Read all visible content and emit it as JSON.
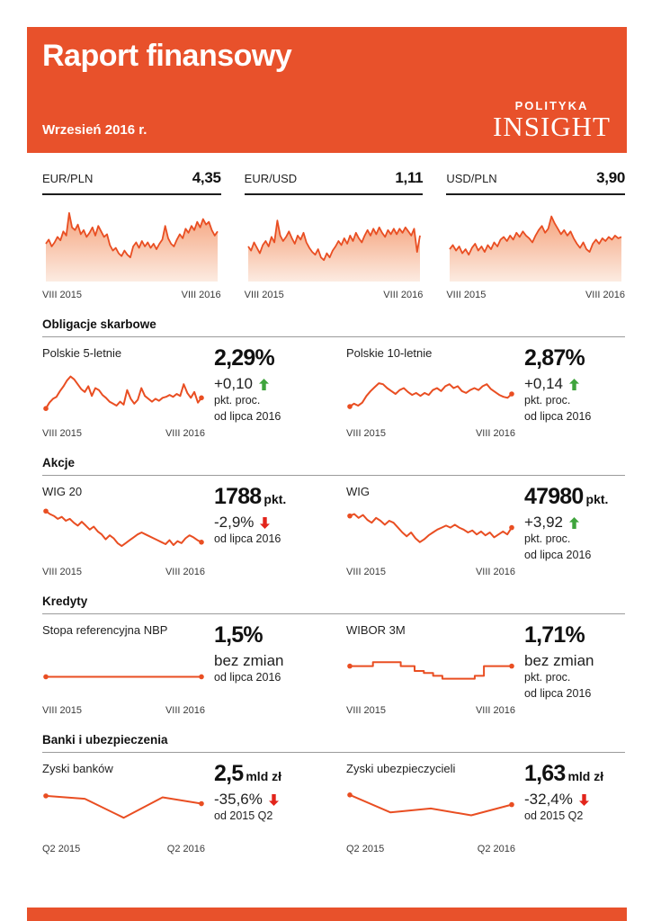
{
  "page": {
    "title": "Raport finansowy",
    "subtitle": "Wrzesień 2016 r."
  },
  "logo": {
    "line1": "POLITYKA",
    "line2": "INSIGHT"
  },
  "colors": {
    "brand_orange": "#E8512B",
    "chart_line": "#E94E22",
    "area_fill_top": "#F5A47E",
    "area_fill_bottom": "#FCEBE1",
    "arrow_up_green": "#3FA43C",
    "arrow_down_red": "#E2241B"
  },
  "fx": [
    {
      "pair": "EUR/PLN",
      "value": "4,35",
      "from": "VIII 2015",
      "to": "VIII 2016"
    },
    {
      "pair": "EUR/USD",
      "value": "1,11",
      "from": "VIII 2015",
      "to": "VIII 2016"
    },
    {
      "pair": "USD/PLN",
      "value": "3,90",
      "from": "VIII 2015",
      "to": "VIII 2016"
    }
  ],
  "sections": [
    {
      "title": "Obligacje skarbowe",
      "items": [
        {
          "label": "Polskie 5-letnie",
          "value": "2,29%",
          "suffix": "",
          "delta": "+0,10",
          "dir": "up",
          "note1": "pkt. proc.",
          "note2": "od lipca 2016",
          "from": "VIII 2015",
          "to": "VIII 2016"
        },
        {
          "label": "Polskie 10-letnie",
          "value": "2,87%",
          "suffix": "",
          "delta": "+0,14",
          "dir": "up",
          "note1": "pkt. proc.",
          "note2": "od lipca 2016",
          "from": "VIII 2015",
          "to": "VIII 2016"
        }
      ]
    },
    {
      "title": "Akcje",
      "items": [
        {
          "label": "WIG 20",
          "value": "1788",
          "suffix": "pkt.",
          "delta": "-2,9%",
          "dir": "down",
          "note1": "od lipca 2016",
          "note2": "",
          "from": "VIII 2015",
          "to": "VIII 2016"
        },
        {
          "label": "WIG",
          "value": "47980",
          "suffix": "pkt.",
          "delta": "+3,92",
          "dir": "up",
          "note1": "pkt. proc.",
          "note2": "od lipca 2016",
          "from": "VIII 2015",
          "to": "VIII 2016"
        }
      ]
    },
    {
      "title": "Kredyty",
      "items": [
        {
          "label": "Stopa referencyjna NBP",
          "value": "1,5%",
          "suffix": "",
          "delta": "bez zmian",
          "dir": "none",
          "note1": "od lipca 2016",
          "note2": "",
          "from": "VIII 2015",
          "to": "VIII 2016"
        },
        {
          "label": "WIBOR 3M",
          "value": "1,71%",
          "suffix": "",
          "delta": "bez zmian",
          "dir": "none",
          "note1": "pkt. proc.",
          "note2": "od lipca 2016",
          "from": "VIII 2015",
          "to": "VIII 2016"
        }
      ]
    },
    {
      "title": "Banki i ubezpieczenia",
      "items": [
        {
          "label": "Zyski banków",
          "value": "2,5",
          "suffix": "mld zł",
          "delta": "-35,6%",
          "dir": "down",
          "note1": "od 2015 Q2",
          "note2": "",
          "from": "Q2 2015",
          "to": "Q2 2016"
        },
        {
          "label": "Zyski ubezpieczycieli",
          "value": "1,63",
          "suffix": "mld zł",
          "delta": "-32,4%",
          "dir": "down",
          "note1": "od 2015 Q2",
          "note2": "",
          "from": "Q2 2015",
          "to": "Q2 2016"
        }
      ]
    }
  ],
  "chart_data": [
    {
      "id": "eur-pln",
      "type": "area",
      "title": "EUR/PLN",
      "current": "4,35",
      "x_start": "VIII 2015",
      "x_end": "VIII 2016",
      "values_scale": "normalized 0-1 (no y-axis shown)",
      "values": [
        0.5,
        0.56,
        0.46,
        0.52,
        0.6,
        0.55,
        0.68,
        0.62,
        0.95,
        0.74,
        0.7,
        0.78,
        0.64,
        0.7,
        0.6,
        0.66,
        0.74,
        0.62,
        0.76,
        0.68,
        0.6,
        0.64,
        0.48,
        0.4,
        0.44,
        0.36,
        0.32,
        0.4,
        0.34,
        0.3,
        0.46,
        0.52,
        0.44,
        0.54,
        0.46,
        0.52,
        0.44,
        0.5,
        0.42,
        0.5,
        0.56,
        0.76,
        0.58,
        0.5,
        0.46,
        0.56,
        0.64,
        0.58,
        0.72,
        0.66,
        0.76,
        0.7,
        0.82,
        0.74,
        0.86,
        0.78,
        0.82,
        0.7,
        0.62,
        0.68
      ]
    },
    {
      "id": "eur-usd",
      "type": "area",
      "title": "EUR/USD",
      "current": "1,11",
      "x_start": "VIII 2015",
      "x_end": "VIII 2016",
      "values_scale": "normalized 0-1 (no y-axis shown)",
      "values": [
        0.46,
        0.4,
        0.52,
        0.44,
        0.36,
        0.48,
        0.54,
        0.46,
        0.6,
        0.52,
        0.84,
        0.62,
        0.54,
        0.6,
        0.68,
        0.58,
        0.5,
        0.62,
        0.56,
        0.66,
        0.52,
        0.44,
        0.38,
        0.34,
        0.42,
        0.3,
        0.26,
        0.36,
        0.3,
        0.4,
        0.46,
        0.54,
        0.48,
        0.58,
        0.5,
        0.62,
        0.54,
        0.66,
        0.58,
        0.52,
        0.62,
        0.7,
        0.62,
        0.72,
        0.64,
        0.74,
        0.66,
        0.6,
        0.7,
        0.64,
        0.72,
        0.64,
        0.72,
        0.66,
        0.74,
        0.68,
        0.62,
        0.72,
        0.38,
        0.62
      ]
    },
    {
      "id": "usd-pln",
      "type": "area",
      "title": "USD/PLN",
      "current": "3,90",
      "x_start": "VIII 2015",
      "x_end": "VIII 2016",
      "values_scale": "normalized 0-1 (no y-axis shown)",
      "values": [
        0.42,
        0.48,
        0.4,
        0.46,
        0.36,
        0.42,
        0.34,
        0.44,
        0.5,
        0.4,
        0.46,
        0.38,
        0.48,
        0.42,
        0.52,
        0.46,
        0.56,
        0.6,
        0.54,
        0.62,
        0.56,
        0.66,
        0.6,
        0.68,
        0.62,
        0.58,
        0.52,
        0.62,
        0.7,
        0.76,
        0.66,
        0.72,
        0.9,
        0.8,
        0.72,
        0.64,
        0.7,
        0.62,
        0.68,
        0.58,
        0.5,
        0.44,
        0.52,
        0.42,
        0.38,
        0.5,
        0.56,
        0.5,
        0.58,
        0.54,
        0.6,
        0.56,
        0.62,
        0.58,
        0.6
      ]
    },
    {
      "id": "obligacje-5",
      "type": "line",
      "title": "Polskie 5-letnie",
      "current": "2,29%",
      "x_start": "VIII 2015",
      "x_end": "VIII 2016",
      "values_scale": "normalized 0-1 (no y-axis shown)",
      "values": [
        0.2,
        0.32,
        0.4,
        0.44,
        0.56,
        0.66,
        0.78,
        0.86,
        0.8,
        0.7,
        0.6,
        0.54,
        0.66,
        0.46,
        0.62,
        0.58,
        0.48,
        0.42,
        0.34,
        0.3,
        0.26,
        0.34,
        0.28,
        0.58,
        0.4,
        0.3,
        0.38,
        0.62,
        0.46,
        0.4,
        0.34,
        0.4,
        0.36,
        0.42,
        0.44,
        0.48,
        0.44,
        0.5,
        0.46,
        0.7,
        0.52,
        0.42,
        0.54,
        0.32,
        0.42
      ]
    },
    {
      "id": "obligacje-10",
      "type": "line",
      "title": "Polskie 10-letnie",
      "current": "2,87%",
      "x_start": "VIII 2015",
      "x_end": "VIII 2016",
      "values_scale": "normalized 0-1 (no y-axis shown)",
      "values": [
        0.24,
        0.3,
        0.26,
        0.32,
        0.46,
        0.56,
        0.64,
        0.72,
        0.7,
        0.62,
        0.56,
        0.5,
        0.58,
        0.62,
        0.54,
        0.48,
        0.52,
        0.46,
        0.52,
        0.48,
        0.58,
        0.62,
        0.56,
        0.66,
        0.7,
        0.62,
        0.66,
        0.56,
        0.52,
        0.58,
        0.62,
        0.58,
        0.66,
        0.7,
        0.6,
        0.54,
        0.48,
        0.44,
        0.42,
        0.5
      ]
    },
    {
      "id": "wig20",
      "type": "line",
      "title": "WIG 20",
      "current": "1788 pkt.",
      "x_start": "VIII 2015",
      "x_end": "VIII 2016",
      "values_scale": "normalized 0-1 (no y-axis shown)",
      "values": [
        0.94,
        0.88,
        0.84,
        0.78,
        0.82,
        0.74,
        0.78,
        0.7,
        0.64,
        0.72,
        0.64,
        0.56,
        0.62,
        0.52,
        0.46,
        0.36,
        0.44,
        0.38,
        0.28,
        0.22,
        0.28,
        0.34,
        0.4,
        0.46,
        0.5,
        0.46,
        0.42,
        0.38,
        0.34,
        0.3,
        0.26,
        0.34,
        0.24,
        0.32,
        0.28,
        0.38,
        0.44,
        0.4,
        0.34,
        0.3
      ]
    },
    {
      "id": "wig",
      "type": "line",
      "title": "WIG",
      "current": "47980 pkt.",
      "x_start": "VIII 2015",
      "x_end": "VIII 2016",
      "values_scale": "normalized 0-1 (no y-axis shown)",
      "values": [
        0.84,
        0.88,
        0.8,
        0.86,
        0.76,
        0.7,
        0.8,
        0.74,
        0.66,
        0.74,
        0.7,
        0.6,
        0.5,
        0.42,
        0.5,
        0.38,
        0.3,
        0.36,
        0.44,
        0.5,
        0.56,
        0.6,
        0.64,
        0.6,
        0.66,
        0.6,
        0.56,
        0.5,
        0.54,
        0.46,
        0.52,
        0.44,
        0.5,
        0.4,
        0.46,
        0.52,
        0.46,
        0.6
      ]
    },
    {
      "id": "stopa-nbp",
      "type": "line",
      "title": "Stopa referencyjna NBP",
      "current": "1,5%",
      "x_start": "VIII 2015",
      "x_end": "VIII 2016",
      "values_scale": "normalized 0-1 (no y-axis shown)",
      "values": [
        0.38,
        0.38
      ]
    },
    {
      "id": "wibor-3m",
      "type": "step",
      "title": "WIBOR 3M",
      "current": "1,71%",
      "x_start": "VIII 2015",
      "x_end": "VIII 2016",
      "values_scale": "normalized 0-1 (no y-axis shown)",
      "values": [
        0.6,
        0.6,
        0.6,
        0.6,
        0.6,
        0.68,
        0.68,
        0.68,
        0.68,
        0.68,
        0.68,
        0.6,
        0.6,
        0.6,
        0.5,
        0.5,
        0.46,
        0.46,
        0.4,
        0.4,
        0.34,
        0.34,
        0.34,
        0.34,
        0.34,
        0.34,
        0.34,
        0.4,
        0.4,
        0.6,
        0.6,
        0.6,
        0.6,
        0.6,
        0.6,
        0.6
      ]
    },
    {
      "id": "zyski-bankow",
      "type": "line",
      "title": "Zyski banków",
      "current": "2,5 mld zł",
      "x_start": "Q2 2015",
      "x_end": "Q2 2016",
      "values_scale": "normalized 0-1 (no y-axis shown)",
      "values": [
        0.78,
        0.72,
        0.33,
        0.75,
        0.62
      ]
    },
    {
      "id": "zyski-ubezpieczycieli",
      "type": "line",
      "title": "Zyski ubezpieczycieli",
      "current": "1,63 mld zł",
      "x_start": "Q2 2015",
      "x_end": "Q2 2016",
      "values_scale": "normalized 0-1 (no y-axis shown)",
      "values": [
        0.8,
        0.44,
        0.52,
        0.38,
        0.6
      ]
    }
  ]
}
